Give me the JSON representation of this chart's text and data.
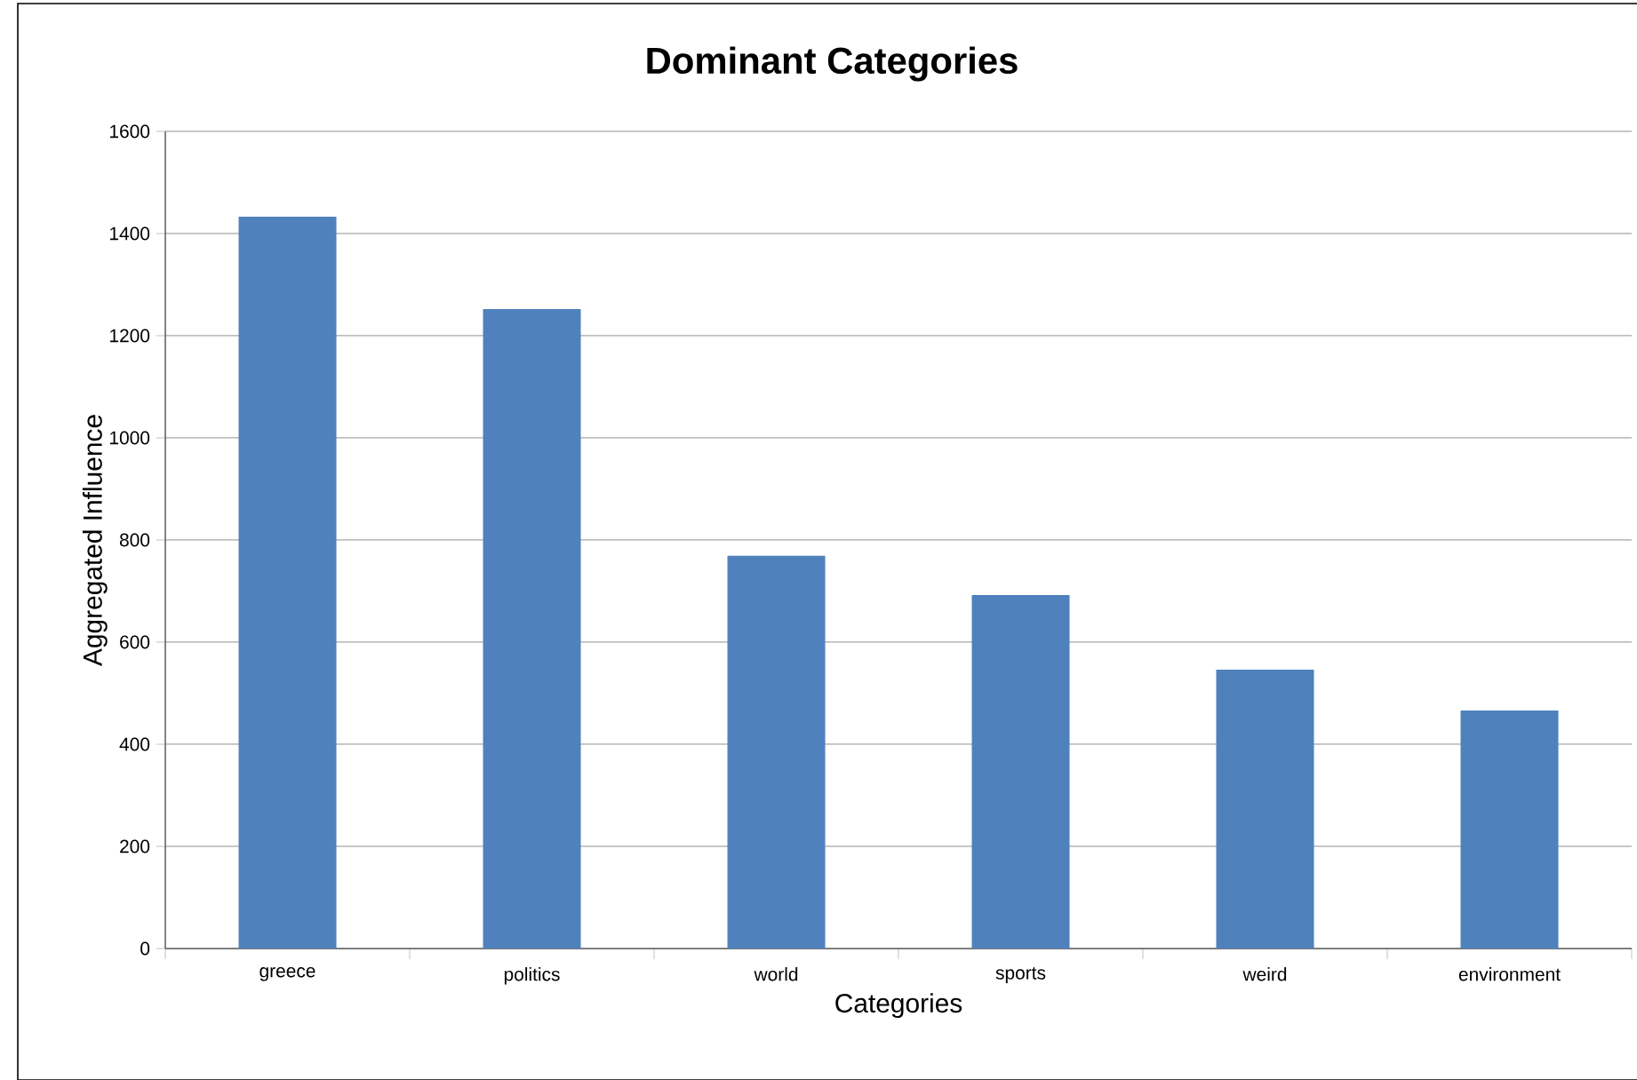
{
  "chart_data": {
    "type": "bar",
    "title": "Dominant Categories",
    "xlabel": "Categories",
    "ylabel": "Aggregated Influence",
    "categories": [
      "greece",
      "politics",
      "world",
      "sports",
      "weird",
      "environment"
    ],
    "values": [
      1433,
      1252,
      769,
      692,
      546,
      466
    ],
    "color": "#4f81bd",
    "ylim": [
      0,
      1600
    ],
    "yticks": [
      0,
      200,
      400,
      600,
      800,
      1000,
      1200,
      1400,
      1600
    ],
    "grid": "y"
  }
}
